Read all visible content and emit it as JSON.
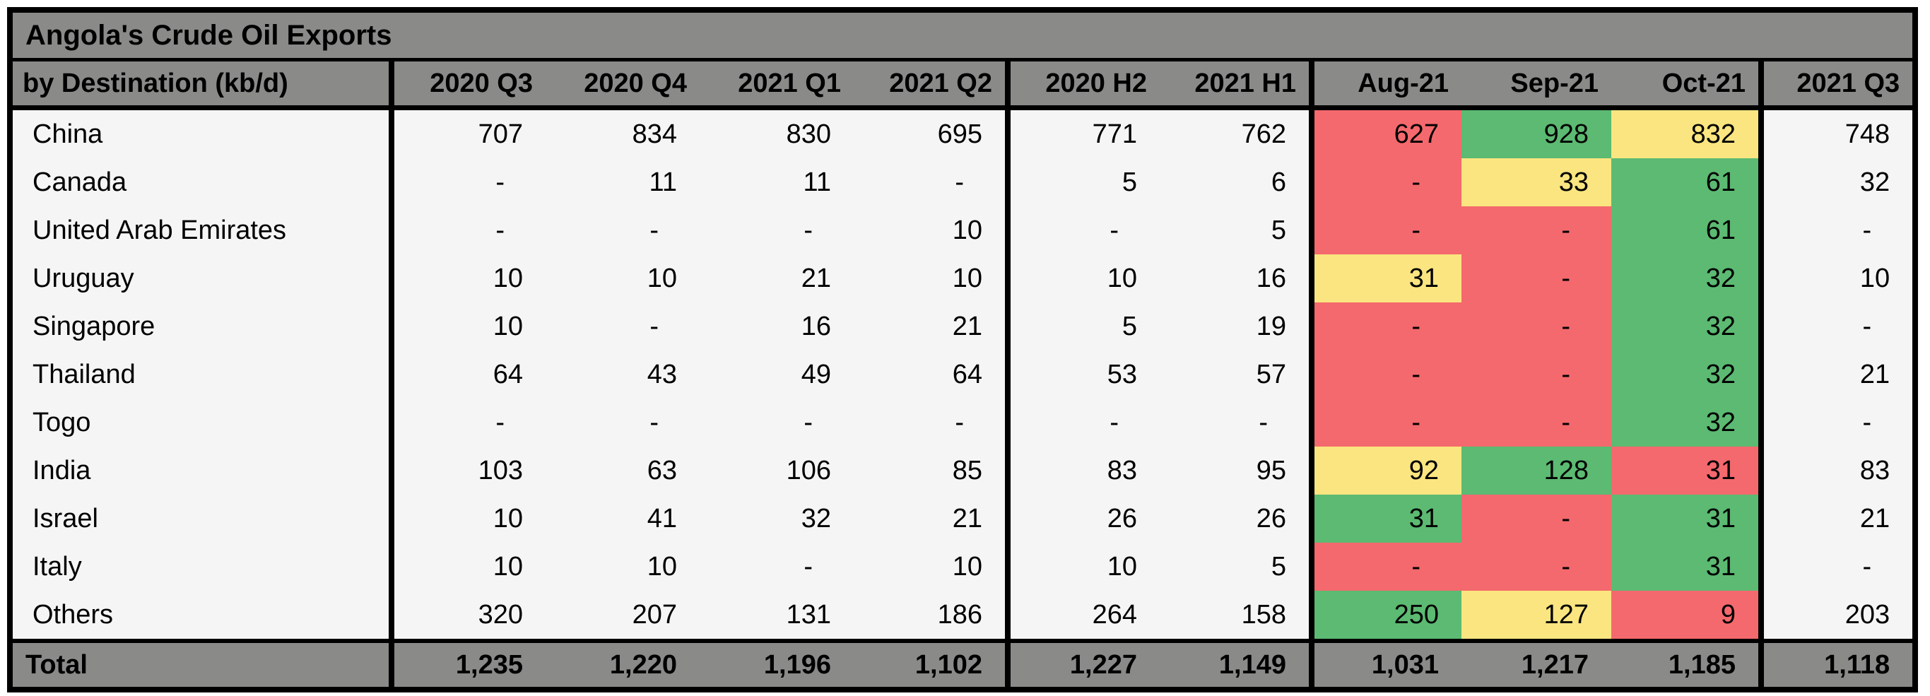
{
  "title": "Angola's Crude Oil Exports",
  "header": {
    "row_label_header": "by Destination (kb/d)",
    "columns": [
      "2020 Q3",
      "2020 Q4",
      "2021 Q1",
      "2021 Q2",
      "2020 H2",
      "2021 H1",
      "Aug-21",
      "Sep-21",
      "Oct-21",
      "2021 Q3"
    ]
  },
  "colors": {
    "header_gray": "#8a8a88",
    "red": "#f4696d",
    "yellow": "#fae580",
    "green": "#5cba72",
    "cell_bg": "#f5f5f5",
    "border": "#000000",
    "text": "#000000"
  },
  "chart_data": {
    "type": "table",
    "title": "Angola's Crude Oil Exports",
    "subtitle": "by Destination (kb/d)",
    "units": "kb/d",
    "columns": [
      "2020 Q3",
      "2020 Q4",
      "2021 Q1",
      "2021 Q2",
      "2020 H2",
      "2021 H1",
      "Aug-21",
      "Sep-21",
      "Oct-21",
      "2021 Q3"
    ],
    "heat_columns": [
      "Aug-21",
      "Sep-21",
      "Oct-21"
    ],
    "rows": [
      {
        "destination": "China",
        "values": [
          "707",
          "834",
          "830",
          "695",
          "771",
          "762",
          "627",
          "928",
          "832",
          "748"
        ],
        "heat": [
          "red",
          "green",
          "yellow"
        ]
      },
      {
        "destination": "Canada",
        "values": [
          "-",
          "11",
          "11",
          "-",
          "5",
          "6",
          "-",
          "33",
          "61",
          "32"
        ],
        "heat": [
          "red",
          "yellow",
          "green"
        ]
      },
      {
        "destination": "United Arab Emirates",
        "values": [
          "-",
          "-",
          "-",
          "10",
          "-",
          "5",
          "-",
          "-",
          "61",
          "-"
        ],
        "heat": [
          "red",
          "red",
          "green"
        ]
      },
      {
        "destination": "Uruguay",
        "values": [
          "10",
          "10",
          "21",
          "10",
          "10",
          "16",
          "31",
          "-",
          "32",
          "10"
        ],
        "heat": [
          "yellow",
          "red",
          "green"
        ]
      },
      {
        "destination": "Singapore",
        "values": [
          "10",
          "-",
          "16",
          "21",
          "5",
          "19",
          "-",
          "-",
          "32",
          "-"
        ],
        "heat": [
          "red",
          "red",
          "green"
        ]
      },
      {
        "destination": "Thailand",
        "values": [
          "64",
          "43",
          "49",
          "64",
          "53",
          "57",
          "-",
          "-",
          "32",
          "21"
        ],
        "heat": [
          "red",
          "red",
          "green"
        ]
      },
      {
        "destination": "Togo",
        "values": [
          "-",
          "-",
          "-",
          "-",
          "-",
          "-",
          "-",
          "-",
          "32",
          "-"
        ],
        "heat": [
          "red",
          "red",
          "green"
        ]
      },
      {
        "destination": "India",
        "values": [
          "103",
          "63",
          "106",
          "85",
          "83",
          "95",
          "92",
          "128",
          "31",
          "83"
        ],
        "heat": [
          "yellow",
          "green",
          "red"
        ]
      },
      {
        "destination": "Israel",
        "values": [
          "10",
          "41",
          "32",
          "21",
          "26",
          "26",
          "31",
          "-",
          "31",
          "21"
        ],
        "heat": [
          "green",
          "red",
          "green"
        ]
      },
      {
        "destination": "Italy",
        "values": [
          "10",
          "10",
          "-",
          "10",
          "10",
          "5",
          "-",
          "-",
          "31",
          "-"
        ],
        "heat": [
          "red",
          "red",
          "green"
        ]
      },
      {
        "destination": "Others",
        "values": [
          "320",
          "207",
          "131",
          "186",
          "264",
          "158",
          "250",
          "127",
          "9",
          "203"
        ],
        "heat": [
          "green",
          "yellow",
          "red"
        ]
      }
    ],
    "total": {
      "label": "Total",
      "values": [
        "1,235",
        "1,220",
        "1,196",
        "1,102",
        "1,227",
        "1,149",
        "1,031",
        "1,217",
        "1,185",
        "1,118"
      ]
    }
  }
}
